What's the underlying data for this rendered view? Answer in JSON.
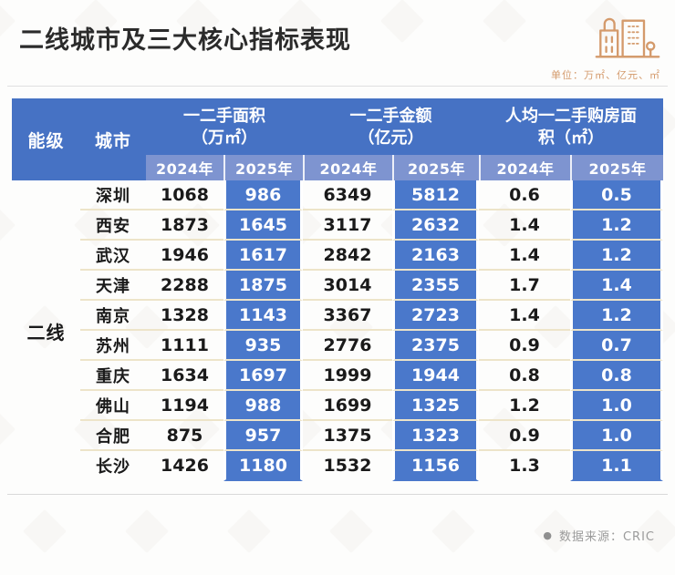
{
  "colors": {
    "header_blue": "#4672C4",
    "subheader_blue": "#7E94D0",
    "cell_blue": "#4A78CB",
    "row_line": "#EDE4C9",
    "accent_orange": "#D49A6B",
    "title_color": "#2B2B2B",
    "text_dark": "#1A1A1A",
    "muted_gray": "#9B9B9B",
    "rule_gray": "#E0E0E0"
  },
  "header": {
    "title": "二线城市及三大核心指标表现",
    "unit_note": "单位：万㎡、亿元、㎡",
    "icon": "city-buildings-icon"
  },
  "table": {
    "tier_header": "能级",
    "city_header": "城市",
    "groups": [
      "一二手面积\n（万㎡）",
      "一二手金额\n（亿元）",
      "人均一二手购房面\n积（㎡）"
    ],
    "year_headers": [
      "2024年",
      "2025年",
      "2024年",
      "2025年",
      "2024年",
      "2025年"
    ],
    "tier_label": "二线",
    "rows": [
      {
        "city": "深圳",
        "area_2024": "1068",
        "area_2025": "986",
        "amount_2024": "6349",
        "amount_2025": "5812",
        "pc_2024": "0.6",
        "pc_2025": "0.5"
      },
      {
        "city": "西安",
        "area_2024": "1873",
        "area_2025": "1645",
        "amount_2024": "3117",
        "amount_2025": "2632",
        "pc_2024": "1.4",
        "pc_2025": "1.2"
      },
      {
        "city": "武汉",
        "area_2024": "1946",
        "area_2025": "1617",
        "amount_2024": "2842",
        "amount_2025": "2163",
        "pc_2024": "1.4",
        "pc_2025": "1.2"
      },
      {
        "city": "天津",
        "area_2024": "2288",
        "area_2025": "1875",
        "amount_2024": "3014",
        "amount_2025": "2355",
        "pc_2024": "1.7",
        "pc_2025": "1.4"
      },
      {
        "city": "南京",
        "area_2024": "1328",
        "area_2025": "1143",
        "amount_2024": "3367",
        "amount_2025": "2723",
        "pc_2024": "1.4",
        "pc_2025": "1.2"
      },
      {
        "city": "苏州",
        "area_2024": "1111",
        "area_2025": "935",
        "amount_2024": "2776",
        "amount_2025": "2375",
        "pc_2024": "0.9",
        "pc_2025": "0.7"
      },
      {
        "city": "重庆",
        "area_2024": "1634",
        "area_2025": "1697",
        "amount_2024": "1999",
        "amount_2025": "1944",
        "pc_2024": "0.8",
        "pc_2025": "0.8"
      },
      {
        "city": "佛山",
        "area_2024": "1194",
        "area_2025": "988",
        "amount_2024": "1699",
        "amount_2025": "1325",
        "pc_2024": "1.2",
        "pc_2025": "1.0"
      },
      {
        "city": "合肥",
        "area_2024": "875",
        "area_2025": "957",
        "amount_2024": "1375",
        "amount_2025": "1323",
        "pc_2024": "0.9",
        "pc_2025": "1.0"
      },
      {
        "city": "长沙",
        "area_2024": "1426",
        "area_2025": "1180",
        "amount_2024": "1532",
        "amount_2025": "1156",
        "pc_2024": "1.3",
        "pc_2025": "1.1"
      }
    ]
  },
  "footer": {
    "bullet": "●",
    "source_note": "数据来源：CRIC"
  },
  "chart_data": {
    "type": "table",
    "title": "二线城市及三大核心指标表现",
    "units": [
      "万㎡",
      "亿元",
      "㎡"
    ],
    "source": "CRIC",
    "tier": "二线",
    "columns": [
      "城市",
      "一二手面积2024年(万㎡)",
      "一二手面积2025年(万㎡)",
      "一二手金额2024年(亿元)",
      "一二手金额2025年(亿元)",
      "人均一二手购房面积2024年(㎡)",
      "人均一二手购房面积2025年(㎡)"
    ],
    "rows": [
      [
        "深圳",
        1068,
        986,
        6349,
        5812,
        0.6,
        0.5
      ],
      [
        "西安",
        1873,
        1645,
        3117,
        2632,
        1.4,
        1.2
      ],
      [
        "武汉",
        1946,
        1617,
        2842,
        2163,
        1.4,
        1.2
      ],
      [
        "天津",
        2288,
        1875,
        3014,
        2355,
        1.7,
        1.4
      ],
      [
        "南京",
        1328,
        1143,
        3367,
        2723,
        1.4,
        1.2
      ],
      [
        "苏州",
        1111,
        935,
        2776,
        2375,
        0.9,
        0.7
      ],
      [
        "重庆",
        1634,
        1697,
        1999,
        1944,
        0.8,
        0.8
      ],
      [
        "佛山",
        1194,
        988,
        1699,
        1325,
        1.2,
        1.0
      ],
      [
        "合肥",
        875,
        957,
        1375,
        1323,
        0.9,
        1.0
      ],
      [
        "长沙",
        1426,
        1180,
        1532,
        1156,
        1.3,
        1.1
      ]
    ]
  }
}
